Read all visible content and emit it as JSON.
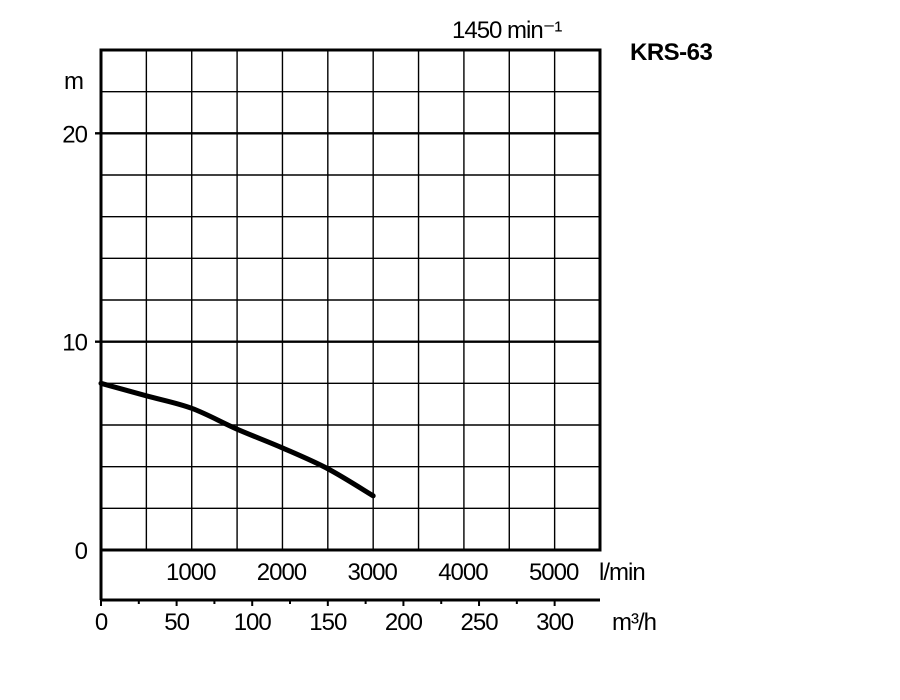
{
  "chart_data": {
    "type": "line",
    "title": "KRS-63",
    "subtitle": "1450 min⁻¹",
    "ylabel": "m",
    "xlabel": "l/min",
    "x2label": "m³/h",
    "xlim": [
      0,
      5500
    ],
    "ylim": [
      0,
      24
    ],
    "x_ticks": [
      1000,
      2000,
      3000,
      4000,
      5000
    ],
    "x_tick_labels": [
      "1000",
      "2000",
      "3000",
      "4000",
      "5000"
    ],
    "y_ticks": [
      0,
      10,
      20
    ],
    "y_tick_labels": [
      "0",
      "10",
      "20"
    ],
    "x2_ticks": [
      0,
      50,
      100,
      150,
      200,
      250,
      300
    ],
    "x2_tick_labels": [
      "0",
      "50",
      "100",
      "150",
      "200",
      "250",
      "300"
    ],
    "grid": true,
    "series": [
      {
        "x": [
          0,
          500,
          1000,
          1500,
          2000,
          2500,
          3000
        ],
        "y": [
          8.0,
          7.4,
          6.8,
          5.8,
          4.9,
          3.9,
          2.6
        ]
      }
    ]
  }
}
